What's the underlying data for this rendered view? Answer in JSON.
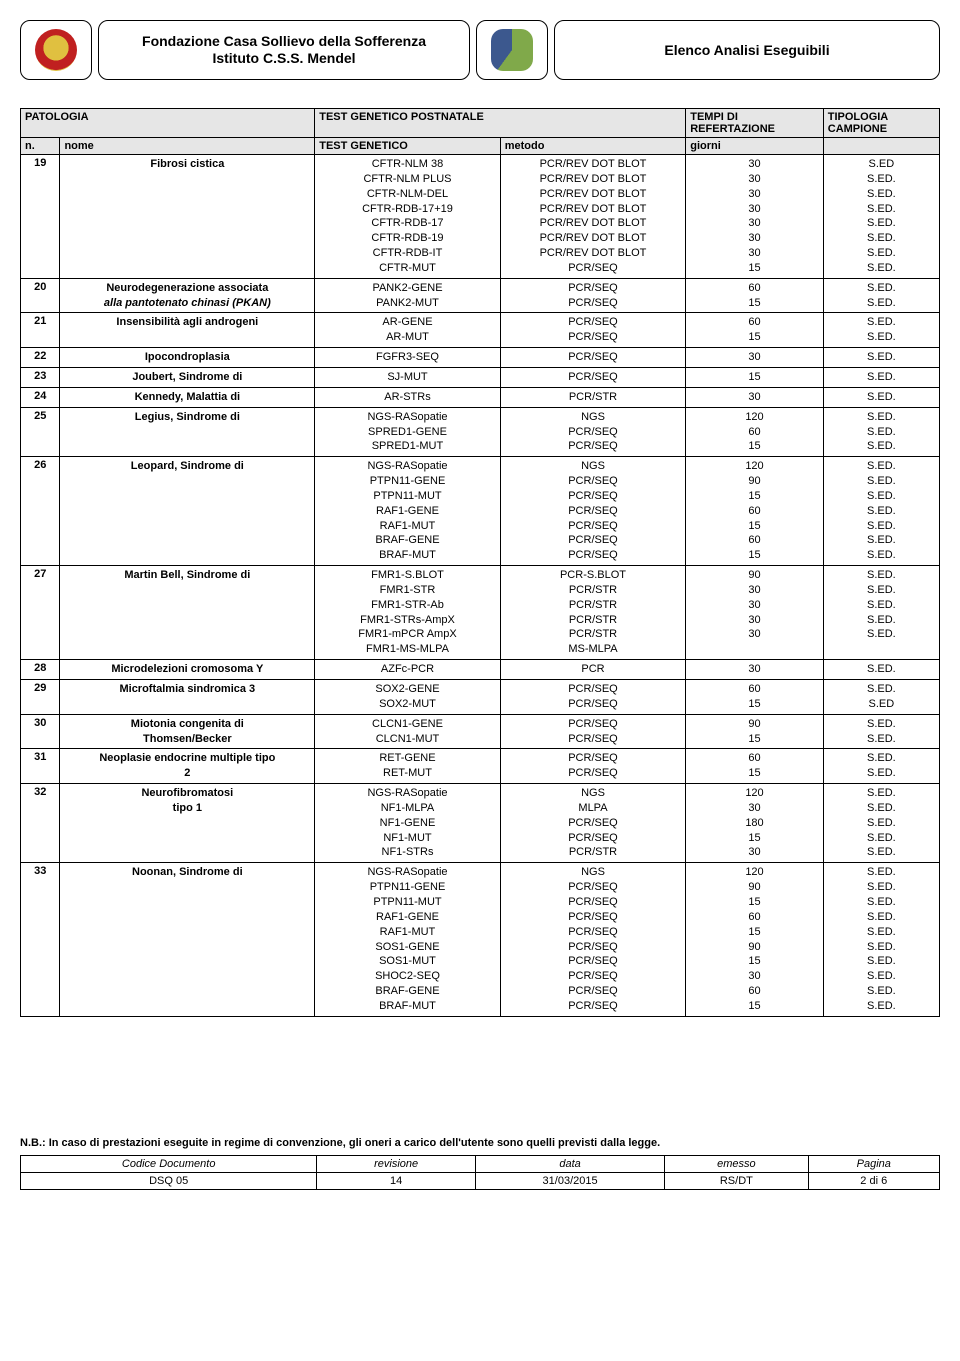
{
  "header": {
    "org_title_line1": "Fondazione Casa Sollievo della Sofferenza",
    "org_title_line2": "Istituto C.S.S. Mendel",
    "right_title": "Elenco Analisi Eseguibili"
  },
  "columns": {
    "patologia": "PATOLOGIA",
    "test_postnatale": "TEST GENETICO POSTNATALE",
    "tempi": "TEMPI DI REFERTAZIONE",
    "tipologia": "TIPOLOGIA CAMPIONE",
    "n": "n.",
    "nome": "nome",
    "test": "TEST GENETICO",
    "metodo": "metodo",
    "giorni": "giorni"
  },
  "rows": [
    {
      "n": "19",
      "nome": "Fibrosi cistica",
      "tests": [
        "CFTR-NLM 38",
        "CFTR-NLM PLUS",
        "CFTR-NLM-DEL",
        "CFTR-RDB-17+19",
        "CFTR-RDB-17",
        "CFTR-RDB-19",
        "CFTR-RDB-IT",
        "CFTR-MUT"
      ],
      "methods": [
        "PCR/REV DOT BLOT",
        "PCR/REV DOT BLOT",
        "PCR/REV DOT BLOT",
        "PCR/REV DOT BLOT",
        "PCR/REV DOT BLOT",
        "PCR/REV DOT BLOT",
        "PCR/REV DOT BLOT",
        "PCR/SEQ"
      ],
      "days": [
        "30",
        "30",
        "30",
        "30",
        "30",
        "30",
        "30",
        "15"
      ],
      "sample": [
        "S.ED",
        "S.ED.",
        "S.ED.",
        "S.ED.",
        "S.ED.",
        "S.ED.",
        "S.ED.",
        "S.ED."
      ]
    },
    {
      "n": "20",
      "nome": "Neurodegenerazione associata",
      "nome_line2_italic": "alla pantotenato chinasi (PKAN)",
      "tests": [
        "PANK2-GENE",
        "PANK2-MUT"
      ],
      "methods": [
        "PCR/SEQ",
        "PCR/SEQ"
      ],
      "days": [
        "60",
        "15"
      ],
      "sample": [
        "S.ED.",
        "S.ED."
      ]
    },
    {
      "n": "21",
      "nome": "Insensibilità agli androgeni",
      "tests": [
        "AR-GENE",
        "AR-MUT"
      ],
      "methods": [
        "PCR/SEQ",
        "PCR/SEQ"
      ],
      "days": [
        "60",
        "15"
      ],
      "sample": [
        "S.ED.",
        "S.ED."
      ]
    },
    {
      "n": "22",
      "nome": "Ipocondroplasia",
      "tests": [
        "FGFR3-SEQ"
      ],
      "methods": [
        "PCR/SEQ"
      ],
      "days": [
        "30"
      ],
      "sample": [
        "S.ED."
      ]
    },
    {
      "n": "23",
      "nome": "Joubert, Sindrome di",
      "tests": [
        "SJ-MUT"
      ],
      "methods": [
        "PCR/SEQ"
      ],
      "days": [
        "15"
      ],
      "sample": [
        "S.ED."
      ]
    },
    {
      "n": "24",
      "nome": "Kennedy, Malattia di",
      "tests": [
        "AR-STRs"
      ],
      "methods": [
        "PCR/STR"
      ],
      "days": [
        "30"
      ],
      "sample": [
        "S.ED."
      ]
    },
    {
      "n": "25",
      "nome": "Legius, Sindrome di",
      "tests": [
        "NGS-RASopatie",
        "SPRED1-GENE",
        "SPRED1-MUT"
      ],
      "methods": [
        "NGS",
        "PCR/SEQ",
        "PCR/SEQ"
      ],
      "days": [
        "120",
        "60",
        "15"
      ],
      "sample": [
        "S.ED.",
        "S.ED.",
        "S.ED."
      ]
    },
    {
      "n": "26",
      "nome": "Leopard, Sindrome di",
      "tests": [
        "NGS-RASopatie",
        "PTPN11-GENE",
        "PTPN11-MUT",
        "RAF1-GENE",
        "RAF1-MUT",
        "BRAF-GENE",
        "BRAF-MUT"
      ],
      "methods": [
        "NGS",
        "PCR/SEQ",
        "PCR/SEQ",
        "PCR/SEQ",
        "PCR/SEQ",
        "PCR/SEQ",
        "PCR/SEQ"
      ],
      "days": [
        "120",
        "90",
        "15",
        "60",
        "15",
        "60",
        "15"
      ],
      "sample": [
        "S.ED.",
        "S.ED.",
        "S.ED.",
        "S.ED.",
        "S.ED.",
        "S.ED.",
        "S.ED."
      ]
    },
    {
      "n": "27",
      "nome": "Martin Bell, Sindrome di",
      "tests": [
        "FMR1-S.BLOT",
        "FMR1-STR",
        "FMR1-STR-Ab",
        "FMR1-STRs-AmpX",
        "FMR1-mPCR AmpX",
        "FMR1-MS-MLPA"
      ],
      "methods": [
        "PCR-S.BLOT",
        "PCR/STR",
        "PCR/STR",
        "PCR/STR",
        "PCR/STR",
        "MS-MLPA"
      ],
      "days": [
        "90",
        "30",
        "30",
        "30",
        "30",
        ""
      ],
      "sample": [
        "S.ED.",
        "S.ED.",
        "S.ED.",
        "S.ED.",
        "S.ED.",
        ""
      ]
    },
    {
      "n": "28",
      "nome": "Microdelezioni cromosoma Y",
      "tests": [
        "AZFc-PCR"
      ],
      "methods": [
        "PCR"
      ],
      "days": [
        "30"
      ],
      "sample": [
        "S.ED."
      ]
    },
    {
      "n": "29",
      "nome": "Microftalmia sindromica 3",
      "tests": [
        "SOX2-GENE",
        "SOX2-MUT"
      ],
      "methods": [
        "PCR/SEQ",
        "PCR/SEQ"
      ],
      "days": [
        "60",
        "15"
      ],
      "sample": [
        "S.ED.",
        "S.ED"
      ]
    },
    {
      "n": "30",
      "nome": "Miotonia congenita di",
      "nome_line2": "Thomsen/Becker",
      "tests": [
        "CLCN1-GENE",
        "CLCN1-MUT"
      ],
      "methods": [
        "PCR/SEQ",
        "PCR/SEQ"
      ],
      "days": [
        "90",
        "15"
      ],
      "sample": [
        "S.ED.",
        "S.ED."
      ]
    },
    {
      "n": "31",
      "nome": "Neoplasie endocrine multiple tipo",
      "nome_line2": "2",
      "tests": [
        "RET-GENE",
        "RET-MUT"
      ],
      "methods": [
        "PCR/SEQ",
        "PCR/SEQ"
      ],
      "days": [
        "60",
        "15"
      ],
      "sample": [
        "S.ED.",
        "S.ED."
      ]
    },
    {
      "n": "32",
      "nome": "Neurofibromatosi",
      "nome_line2": "tipo 1",
      "tests": [
        "NGS-RASopatie",
        "NF1-MLPA",
        "NF1-GENE",
        "NF1-MUT",
        "NF1-STRs"
      ],
      "methods": [
        "NGS",
        "MLPA",
        "PCR/SEQ",
        "PCR/SEQ",
        "PCR/STR"
      ],
      "days": [
        "120",
        "30",
        "180",
        "15",
        "30"
      ],
      "sample": [
        "S.ED.",
        "S.ED.",
        "S.ED.",
        "S.ED.",
        "S.ED."
      ]
    },
    {
      "n": "33",
      "nome": "Noonan, Sindrome di",
      "tests": [
        "NGS-RASopatie",
        "PTPN11-GENE",
        "PTPN11-MUT",
        "RAF1-GENE",
        "RAF1-MUT",
        "SOS1-GENE",
        "SOS1-MUT",
        "SHOC2-SEQ",
        "BRAF-GENE",
        "BRAF-MUT"
      ],
      "methods": [
        "NGS",
        "PCR/SEQ",
        "PCR/SEQ",
        "PCR/SEQ",
        "PCR/SEQ",
        "PCR/SEQ",
        "PCR/SEQ",
        "PCR/SEQ",
        "PCR/SEQ",
        "PCR/SEQ"
      ],
      "days": [
        "120",
        "90",
        "15",
        "60",
        "15",
        "90",
        "15",
        "30",
        "60",
        "15"
      ],
      "sample": [
        "S.ED.",
        "S.ED.",
        "S.ED.",
        "S.ED.",
        "S.ED.",
        "S.ED.",
        "S.ED.",
        "S.ED.",
        "S.ED.",
        "S.ED."
      ]
    }
  ],
  "footnote": "N.B.: In caso di prestazioni eseguite in regime di convenzione, gli oneri  a carico dell'utente sono quelli  previsti dalla legge.",
  "footer": {
    "headers": [
      "Codice Documento",
      "revisione",
      "data",
      "emesso",
      "Pagina"
    ],
    "values": [
      "DSQ 05",
      "14",
      "31/03/2015",
      "RS/DT",
      "2 di 6"
    ]
  }
}
